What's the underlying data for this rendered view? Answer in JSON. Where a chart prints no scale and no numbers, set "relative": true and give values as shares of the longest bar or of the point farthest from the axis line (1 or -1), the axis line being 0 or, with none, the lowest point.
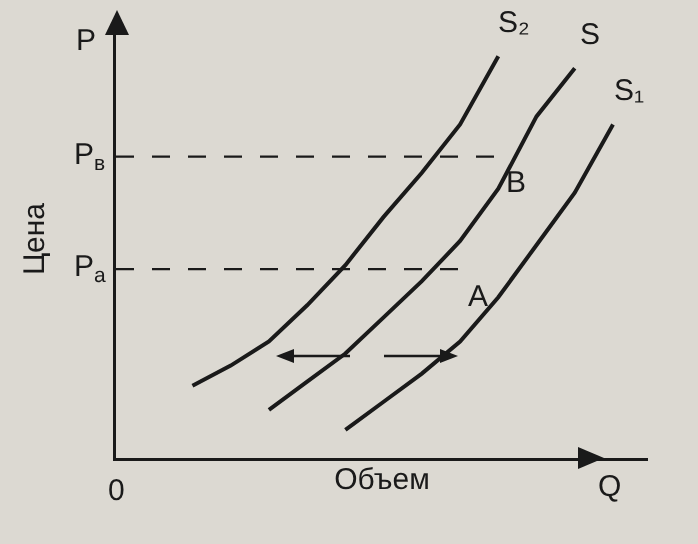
{
  "chart_data": {
    "type": "line",
    "relative": true,
    "xlabel": "Объем",
    "ylabel": "Цена",
    "legend": false,
    "grid": false,
    "categories": [
      null,
      null,
      null,
      null,
      null,
      null,
      null,
      null,
      null,
      null,
      null,
      null,
      null,
      null
    ],
    "series": [
      {
        "name": "S₂",
        "color": "#1a1a1a",
        "values": [
          null,
          null,
          0.18,
          0.23,
          0.29,
          0.38,
          0.48,
          0.6,
          0.71,
          0.83,
          1.0,
          null,
          null,
          null
        ]
      },
      {
        "name": "S",
        "color": "#1a1a1a",
        "values": [
          null,
          null,
          null,
          null,
          0.12,
          0.19,
          0.26,
          0.35,
          0.44,
          0.54,
          0.67,
          0.85,
          0.97,
          null
        ]
      },
      {
        "name": "S₁",
        "color": "#1a1a1a",
        "values": [
          null,
          null,
          null,
          null,
          null,
          null,
          0.07,
          0.14,
          0.21,
          0.29,
          0.4,
          0.53,
          0.66,
          0.83
        ]
      },
      {
        "color": "#1a1a1a",
        "line_style": "dashed",
        "values": [
          0.47,
          0.47,
          0.47,
          0.47,
          0.47,
          0.47,
          0.47,
          0.47,
          0.47,
          0.47,
          null,
          null,
          null,
          null
        ]
      },
      {
        "color": "#1a1a1a",
        "line_style": "dashed",
        "values": [
          0.75,
          0.75,
          0.75,
          0.75,
          0.75,
          0.75,
          0.75,
          0.75,
          0.75,
          0.75,
          0.75,
          null,
          null,
          null
        ]
      }
    ],
    "annotations": [
      "P",
      "Q",
      "0",
      "P$_{a}$",
      "A",
      "P$_{в}$",
      "B"
    ]
  }
}
